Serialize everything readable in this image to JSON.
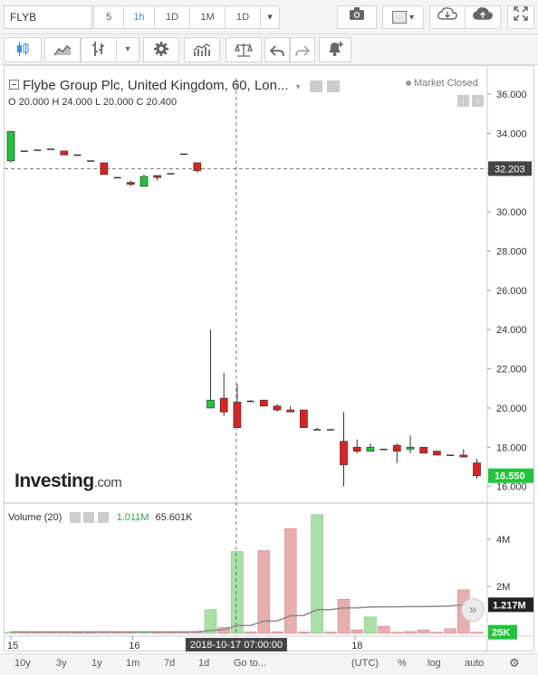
{
  "toolbar": {
    "symbol": "FLYB",
    "intervals": [
      "5",
      "1h",
      "1D",
      "1M",
      "1D"
    ],
    "active_interval": "1h"
  },
  "legend": {
    "title": "Flybe Group Plc, United Kingdom, 60, Lon...",
    "ohlc": "O 20.000  H 24.000  L 20.000  C 20.400",
    "market_status": "Market Closed"
  },
  "logo": {
    "brand": "Investing",
    "suffix": ".com"
  },
  "volume_legend": {
    "label": "Volume (20)",
    "value1": "1.011M",
    "value2": "65.601K"
  },
  "bottom_toolbar": {
    "ranges": [
      "10y",
      "3y",
      "1y",
      "1m",
      "7d",
      "1d"
    ],
    "goto": "Go to...",
    "right": [
      "(UTC)",
      "%",
      "log",
      "auto"
    ]
  },
  "colors": {
    "up": "#1fc53a",
    "down": "#e3201f",
    "vol_up": "#a8e0a5",
    "vol_down": "#e8aeae"
  },
  "chart_data": {
    "type": "candlestick",
    "price_axis": {
      "range": [
        15.2,
        37.2
      ],
      "ticks": [
        "36.000",
        "34.000",
        "32.000",
        "30.000",
        "28.000",
        "26.000",
        "24.000",
        "22.000",
        "20.000",
        "18.000",
        "16.000"
      ],
      "crosshair_label": "32.203",
      "last_label": "16.550"
    },
    "volume_axis": {
      "range": [
        0,
        5.5
      ],
      "ticks": [
        "4M",
        "2M"
      ],
      "labels": [
        "1.217M",
        "25K"
      ]
    },
    "time_axis": {
      "ticks": [
        "15",
        "16",
        "18"
      ],
      "crosshair_label": "2018-10-17 07:00:00"
    },
    "crosshair": {
      "price": 32.203
    },
    "candles": [
      {
        "o": 32.6,
        "h": 34.1,
        "l": 32.5,
        "c": 34.1
      },
      {
        "o": 33.1,
        "h": 33.1,
        "l": 33.1,
        "c": 33.1
      },
      {
        "o": 33.15,
        "h": 33.15,
        "l": 33.15,
        "c": 33.15
      },
      {
        "o": 33.2,
        "h": 33.2,
        "l": 33.2,
        "c": 33.2
      },
      {
        "o": 33.1,
        "h": 33.1,
        "l": 32.9,
        "c": 32.9
      },
      {
        "o": 32.9,
        "h": 32.9,
        "l": 32.9,
        "c": 32.9
      },
      {
        "o": 32.6,
        "h": 32.6,
        "l": 32.6,
        "c": 32.6
      },
      {
        "o": 32.5,
        "h": 32.5,
        "l": 31.9,
        "c": 31.9
      },
      {
        "o": 31.75,
        "h": 31.75,
        "l": 31.75,
        "c": 31.75
      },
      {
        "o": 31.5,
        "h": 31.6,
        "l": 31.3,
        "c": 31.4
      },
      {
        "o": 31.3,
        "h": 31.9,
        "l": 31.3,
        "c": 31.8
      },
      {
        "o": 31.85,
        "h": 31.85,
        "l": 31.6,
        "c": 31.75
      },
      {
        "o": 31.95,
        "h": 31.95,
        "l": 31.95,
        "c": 31.95
      },
      {
        "o": 32.95,
        "h": 32.95,
        "l": 32.95,
        "c": 32.95
      },
      {
        "o": 32.5,
        "h": 32.5,
        "l": 32.0,
        "c": 32.1
      },
      {
        "o": 20.0,
        "h": 24.0,
        "l": 20.0,
        "c": 20.4
      },
      {
        "o": 20.5,
        "h": 21.8,
        "l": 19.6,
        "c": 19.8
      },
      {
        "o": 20.3,
        "h": 21.2,
        "l": 19.0,
        "c": 19.0
      },
      {
        "o": 20.35,
        "h": 20.4,
        "l": 20.3,
        "c": 20.35
      },
      {
        "o": 20.4,
        "h": 20.4,
        "l": 20.1,
        "c": 20.1
      },
      {
        "o": 20.1,
        "h": 20.2,
        "l": 19.8,
        "c": 19.9
      },
      {
        "o": 19.9,
        "h": 20.1,
        "l": 19.8,
        "c": 19.8
      },
      {
        "o": 19.9,
        "h": 19.9,
        "l": 19.0,
        "c": 19.0
      },
      {
        "o": 18.9,
        "h": 19.0,
        "l": 18.9,
        "c": 18.9
      },
      {
        "o": 18.9,
        "h": 18.9,
        "l": 18.9,
        "c": 18.9
      },
      {
        "o": 18.3,
        "h": 19.8,
        "l": 16.0,
        "c": 17.1
      },
      {
        "o": 18.0,
        "h": 18.4,
        "l": 17.7,
        "c": 17.8
      },
      {
        "o": 17.8,
        "h": 18.2,
        "l": 17.8,
        "c": 18.0
      },
      {
        "o": 17.9,
        "h": 17.9,
        "l": 17.9,
        "c": 17.9
      },
      {
        "o": 18.1,
        "h": 18.2,
        "l": 17.2,
        "c": 17.8
      },
      {
        "o": 17.9,
        "h": 18.6,
        "l": 17.7,
        "c": 18.0
      },
      {
        "o": 18.0,
        "h": 18.0,
        "l": 17.7,
        "c": 17.7
      },
      {
        "o": 17.8,
        "h": 17.8,
        "l": 17.6,
        "c": 17.6
      },
      {
        "o": 17.6,
        "h": 17.6,
        "l": 17.6,
        "c": 17.6
      },
      {
        "o": 17.6,
        "h": 17.9,
        "l": 17.5,
        "c": 17.5
      },
      {
        "o": 17.2,
        "h": 17.4,
        "l": 16.4,
        "c": 16.55
      }
    ],
    "volumes_m": [
      0.05,
      0.05,
      0.05,
      0.05,
      0.05,
      0.03,
      0.03,
      0.05,
      0.05,
      0.06,
      0.06,
      0.05,
      0.06,
      0.06,
      0.08,
      1.01,
      0.25,
      3.48,
      0.06,
      3.52,
      0.07,
      4.45,
      0.06,
      5.05,
      0.06,
      1.45,
      0.15,
      0.7,
      0.3,
      0.05,
      0.08,
      0.15,
      0.05,
      0.2,
      1.85,
      0.05
    ],
    "volume_up": [
      true,
      false,
      false,
      false,
      false,
      false,
      false,
      false,
      false,
      false,
      true,
      false,
      false,
      false,
      false,
      true,
      false,
      true,
      false,
      false,
      false,
      false,
      false,
      true,
      false,
      false,
      false,
      true,
      false,
      false,
      false,
      false,
      false,
      false,
      false,
      false
    ],
    "volume_ma_m": [
      0.06,
      0.06,
      0.06,
      0.06,
      0.06,
      0.06,
      0.06,
      0.06,
      0.06,
      0.06,
      0.06,
      0.06,
      0.06,
      0.06,
      0.07,
      0.12,
      0.16,
      0.33,
      0.34,
      0.52,
      0.53,
      0.75,
      0.76,
      1.01,
      1.01,
      1.08,
      1.09,
      1.12,
      1.13,
      1.13,
      1.14,
      1.14,
      1.15,
      1.16,
      1.22,
      1.217
    ]
  }
}
